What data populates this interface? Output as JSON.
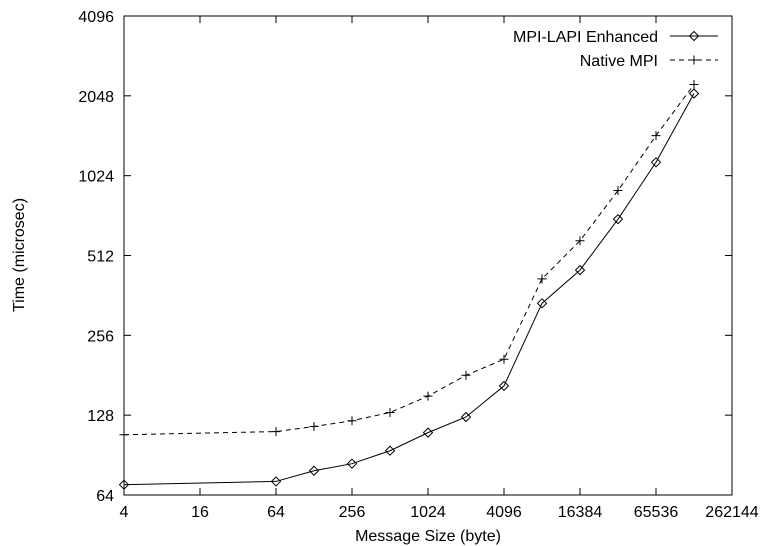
{
  "chart_data": {
    "type": "line",
    "title": "",
    "xlabel": "Message Size (byte)",
    "ylabel": "Time (microsec)",
    "x_scale": "log2",
    "y_scale": "log2",
    "xlim": [
      4,
      262144
    ],
    "ylim": [
      64,
      4096
    ],
    "x_ticks": [
      4,
      16,
      64,
      256,
      1024,
      4096,
      16384,
      65536,
      262144
    ],
    "x_tick_labels": [
      "4",
      "16",
      "64",
      "256",
      "1024",
      "4096",
      "16384",
      "65536",
      "262144"
    ],
    "y_ticks": [
      64,
      128,
      256,
      512,
      1024,
      2048,
      4096
    ],
    "y_tick_labels": [
      "64",
      "128",
      "256",
      "512",
      "1024",
      "2048",
      "4096"
    ],
    "grid": false,
    "legend_position": "top-right",
    "series": [
      {
        "name": "MPI-LAPI Enhanced",
        "marker": "diamond",
        "line_style": "solid",
        "color": "#000000",
        "x": [
          4,
          64,
          128,
          256,
          512,
          1024,
          2048,
          4096,
          8192,
          16384,
          32768,
          65536,
          131072
        ],
        "y": [
          70,
          72,
          79,
          84,
          94,
          110,
          126,
          165,
          338,
          451,
          702,
          1150,
          2090
        ]
      },
      {
        "name": "Native MPI",
        "marker": "plus",
        "line_style": "dashed",
        "color": "#000000",
        "x": [
          4,
          64,
          128,
          256,
          512,
          1024,
          2048,
          4096,
          8192,
          16384,
          32768,
          65536,
          131072
        ],
        "y": [
          108,
          111,
          116,
          122,
          131,
          151,
          181,
          208,
          418,
          582,
          900,
          1450,
          2260
        ]
      }
    ]
  }
}
